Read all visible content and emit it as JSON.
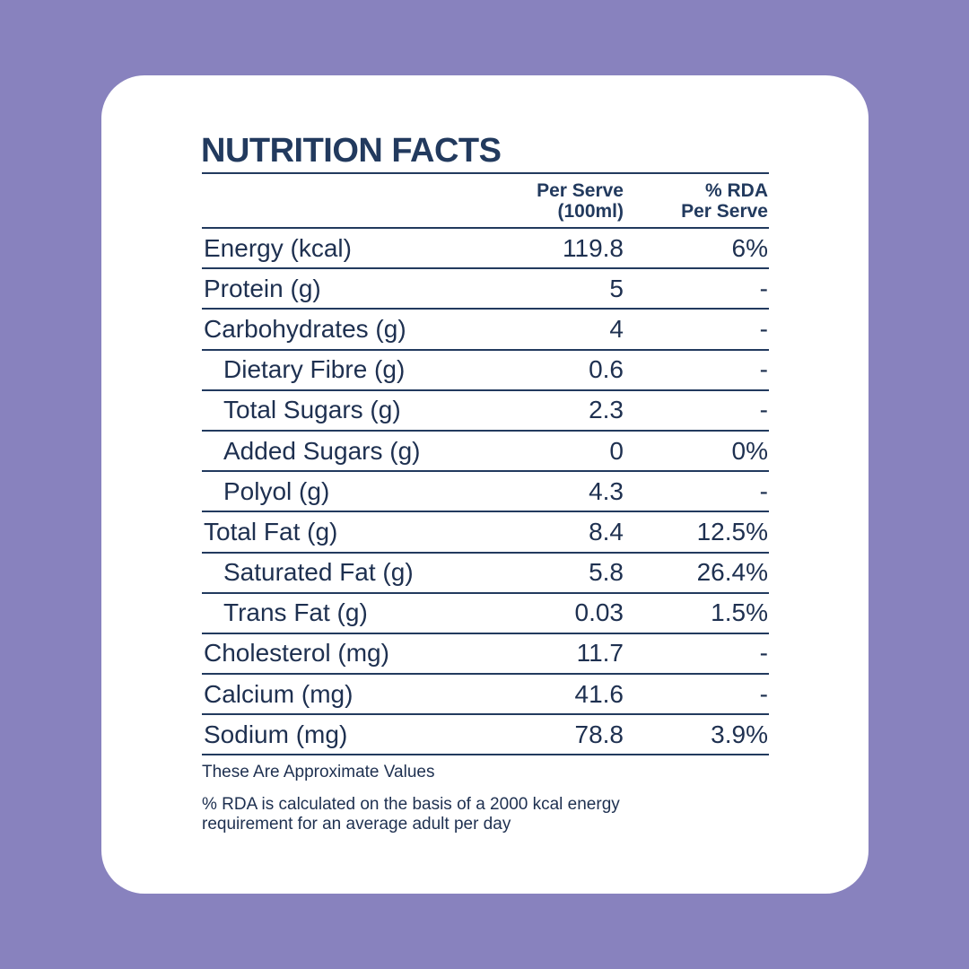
{
  "title": "NUTRITION FACTS",
  "header": {
    "per_serve_line1": "Per Serve",
    "per_serve_line2": "(100ml)",
    "rda_line1": "% RDA",
    "rda_line2": "Per Serve"
  },
  "rows": [
    {
      "label": "Energy (kcal)",
      "per_serve": "119.8",
      "rda": "6%",
      "indent": false
    },
    {
      "label": "Protein (g)",
      "per_serve": "5",
      "rda": "-",
      "indent": false
    },
    {
      "label": "Carbohydrates (g)",
      "per_serve": "4",
      "rda": "-",
      "indent": false
    },
    {
      "label": "Dietary Fibre (g)",
      "per_serve": "0.6",
      "rda": "-",
      "indent": true
    },
    {
      "label": "Total Sugars (g)",
      "per_serve": "2.3",
      "rda": "-",
      "indent": true
    },
    {
      "label": "Added Sugars (g)",
      "per_serve": "0",
      "rda": "0%",
      "indent": true
    },
    {
      "label": "Polyol (g)",
      "per_serve": "4.3",
      "rda": "-",
      "indent": true
    },
    {
      "label": "Total Fat (g)",
      "per_serve": "8.4",
      "rda": "12.5%",
      "indent": false
    },
    {
      "label": "Saturated Fat (g)",
      "per_serve": "5.8",
      "rda": "26.4%",
      "indent": true
    },
    {
      "label": "Trans Fat (g)",
      "per_serve": "0.03",
      "rda": "1.5%",
      "indent": true
    },
    {
      "label": "Cholesterol (mg)",
      "per_serve": "11.7",
      "rda": "-",
      "indent": false
    },
    {
      "label": "Calcium (mg)",
      "per_serve": "41.6",
      "rda": "-",
      "indent": false
    },
    {
      "label": "Sodium (mg)",
      "per_serve": "78.8",
      "rda": "3.9%",
      "indent": false
    }
  ],
  "notes": {
    "approx": "These Are Approximate Values",
    "rda_line1": "% RDA is calculated on the basis of a 2000 kcal energy",
    "rda_line2": "requirement for an average adult per day"
  },
  "colors": {
    "background": "#8882be",
    "card": "#ffffff",
    "text": "#1e3050",
    "rule": "#223a5e"
  }
}
